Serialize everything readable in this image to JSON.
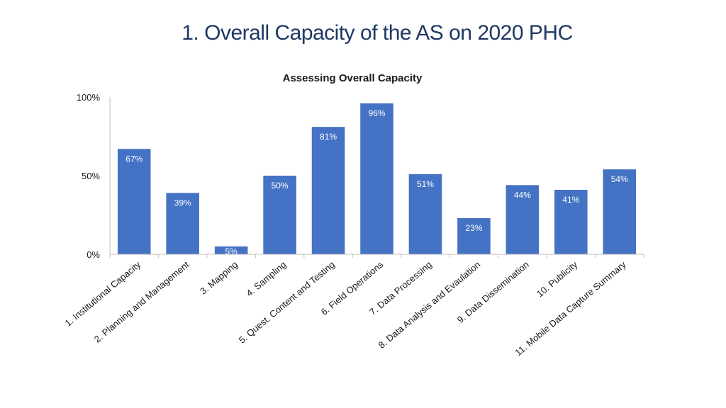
{
  "slide": {
    "title": "1. Overall Capacity of the AS on 2020 PHC"
  },
  "colors": {
    "bar": "#4472c4",
    "axis": "#bfbfbf",
    "title": "#1f3864"
  },
  "chart_data": {
    "type": "bar",
    "title": "Assessing Overall Capacity",
    "xlabel": "",
    "ylabel": "",
    "ylim": [
      0,
      100
    ],
    "y_ticks": [
      "0%",
      "50%",
      "100%"
    ],
    "y_tick_values": [
      0,
      50,
      100
    ],
    "grid": false,
    "categories": [
      "1. Institutional Capacity",
      "2. Planning and Management",
      "3. Mapping",
      "4. Sampling",
      "5. Quest. Content and Testing",
      "6. Field Operations",
      "7. Data Processing",
      "8. Data Analysis and Evaulation",
      "9. Data Dissemination",
      "10. Publicity",
      "11. Mobile Data Capture Summary"
    ],
    "values": [
      67,
      39,
      5,
      50,
      81,
      96,
      51,
      23,
      44,
      41,
      54
    ],
    "data_labels": [
      "67%",
      "39%",
      "5%",
      "50%",
      "81%",
      "96%",
      "51%",
      "23%",
      "44%",
      "41%",
      "54%"
    ]
  }
}
